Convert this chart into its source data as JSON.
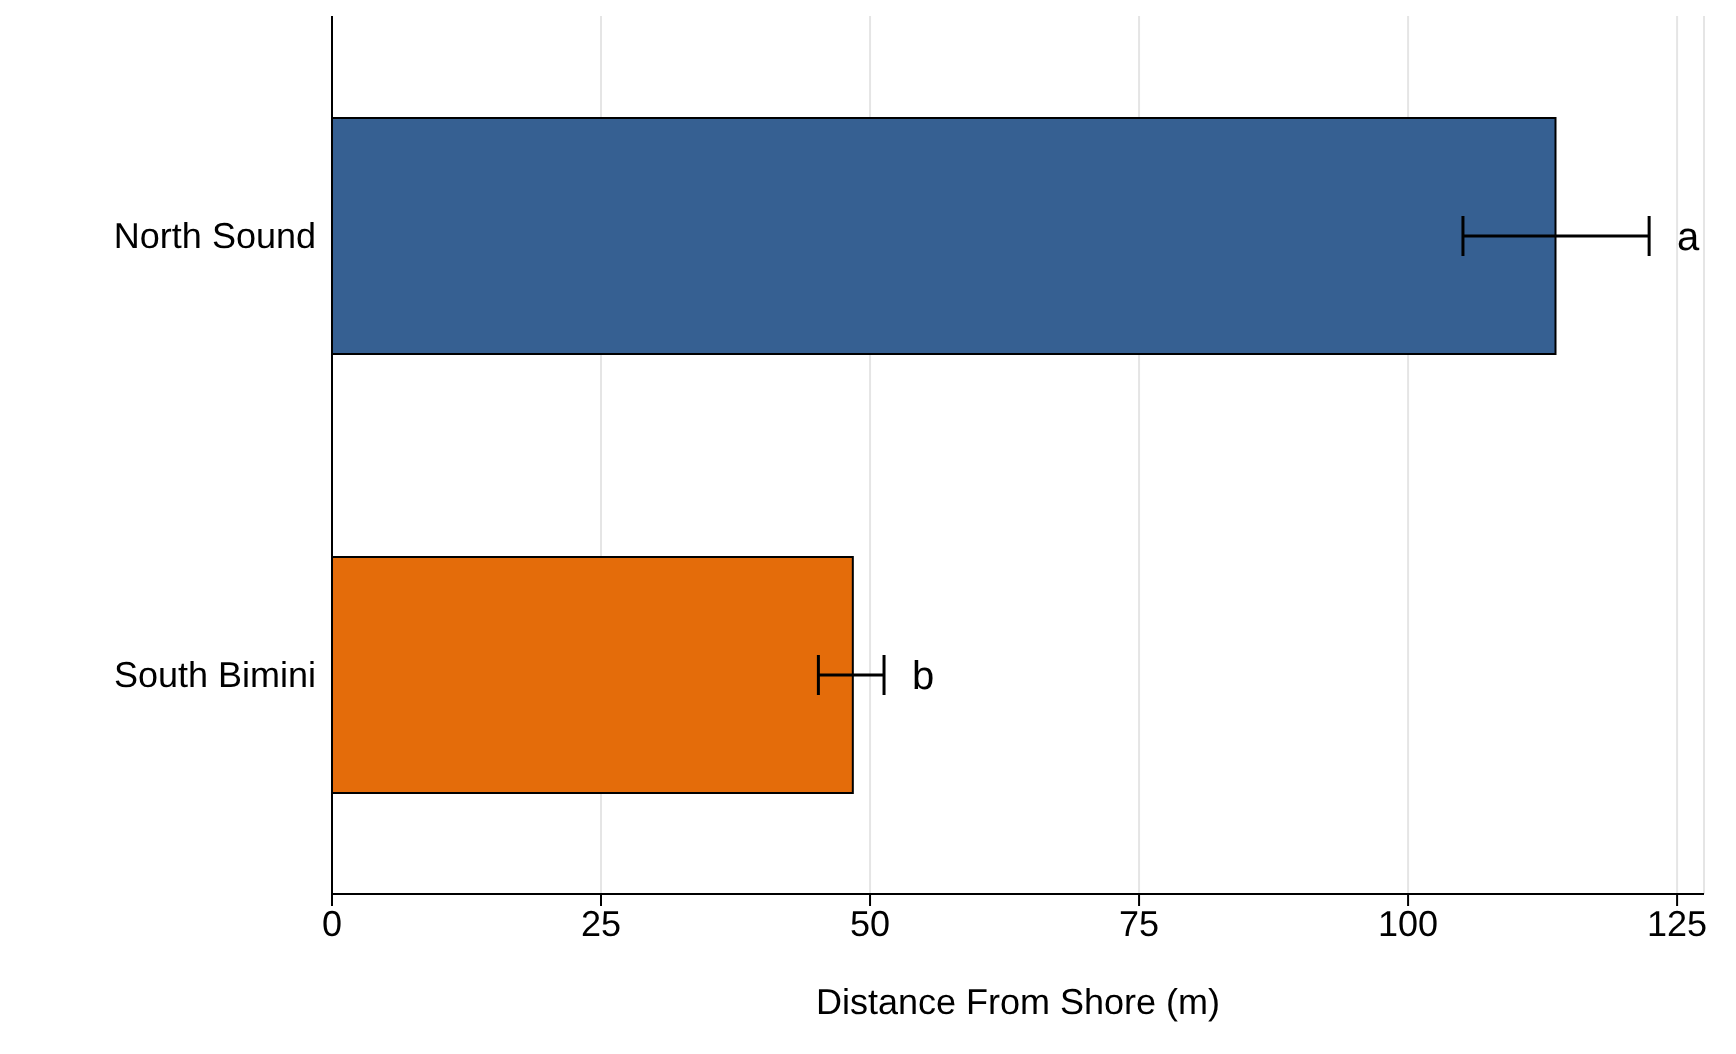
{
  "chart_data": {
    "type": "bar",
    "orientation": "horizontal",
    "xlabel": "Distance From Shore (m)",
    "categories": [
      "North Sound",
      "South Bimini"
    ],
    "values": [
      113.7,
      48.4
    ],
    "colors": [
      "#366092",
      "#e46c0a"
    ],
    "errors": [
      [
        105.1,
        122.4
      ],
      [
        45.2,
        51.3
      ]
    ],
    "xlim": [
      0,
      127.5
    ],
    "xticks": [
      0,
      25,
      50,
      75,
      100,
      125
    ],
    "grid": "x",
    "annotations": [
      "a",
      "b"
    ]
  }
}
